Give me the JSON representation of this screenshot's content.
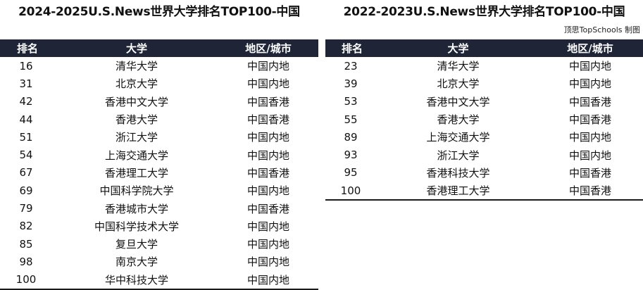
{
  "left": {
    "title": "2024-2025U.S.News世界大学排名TOP100-中国",
    "headers": {
      "rank": "排名",
      "university": "大学",
      "region": "地区/城市"
    },
    "rows": [
      {
        "rank": "16",
        "university": "清华大学",
        "region": "中国内地"
      },
      {
        "rank": "31",
        "university": "北京大学",
        "region": "中国内地"
      },
      {
        "rank": "42",
        "university": "香港中文大学",
        "region": "中国香港"
      },
      {
        "rank": "44",
        "university": "香港大学",
        "region": "中国香港"
      },
      {
        "rank": "51",
        "university": "浙江大学",
        "region": "中国内地"
      },
      {
        "rank": "54",
        "university": "上海交通大学",
        "region": "中国内地"
      },
      {
        "rank": "67",
        "university": "香港理工大学",
        "region": "中国香港"
      },
      {
        "rank": "69",
        "university": "中国科学院大学",
        "region": "中国内地"
      },
      {
        "rank": "79",
        "university": "香港城市大学",
        "region": "中国香港"
      },
      {
        "rank": "82",
        "university": "中国科学技术大学",
        "region": "中国内地"
      },
      {
        "rank": "85",
        "university": "复旦大学",
        "region": "中国内地"
      },
      {
        "rank": "98",
        "university": "南京大学",
        "region": "中国内地"
      },
      {
        "rank": "100",
        "university": "华中科技大学",
        "region": "中国内地"
      }
    ]
  },
  "right": {
    "title": "2022-2023U.S.News世界大学排名TOP100-中国",
    "credit": "顶思TopSchools 制图",
    "headers": {
      "rank": "排名",
      "university": "大学",
      "region": "地区/城市"
    },
    "rows": [
      {
        "rank": "23",
        "university": "清华大学",
        "region": "中国内地"
      },
      {
        "rank": "39",
        "university": "北京大学",
        "region": "中国内地"
      },
      {
        "rank": "53",
        "university": "香港中文大学",
        "region": "中国香港"
      },
      {
        "rank": "55",
        "university": "香港大学",
        "region": "中国香港"
      },
      {
        "rank": "89",
        "university": "上海交通大学",
        "region": "中国内地"
      },
      {
        "rank": "93",
        "university": "浙江大学",
        "region": "中国内地"
      },
      {
        "rank": "95",
        "university": "香港科技大学",
        "region": "中国香港"
      },
      {
        "rank": "100",
        "university": "香港理工大学",
        "region": "中国香港"
      }
    ]
  },
  "colors": {
    "header_background": "#1f2437",
    "header_text": "#ffffff",
    "body_text": "#111111",
    "rule": "#1a1a1a"
  }
}
